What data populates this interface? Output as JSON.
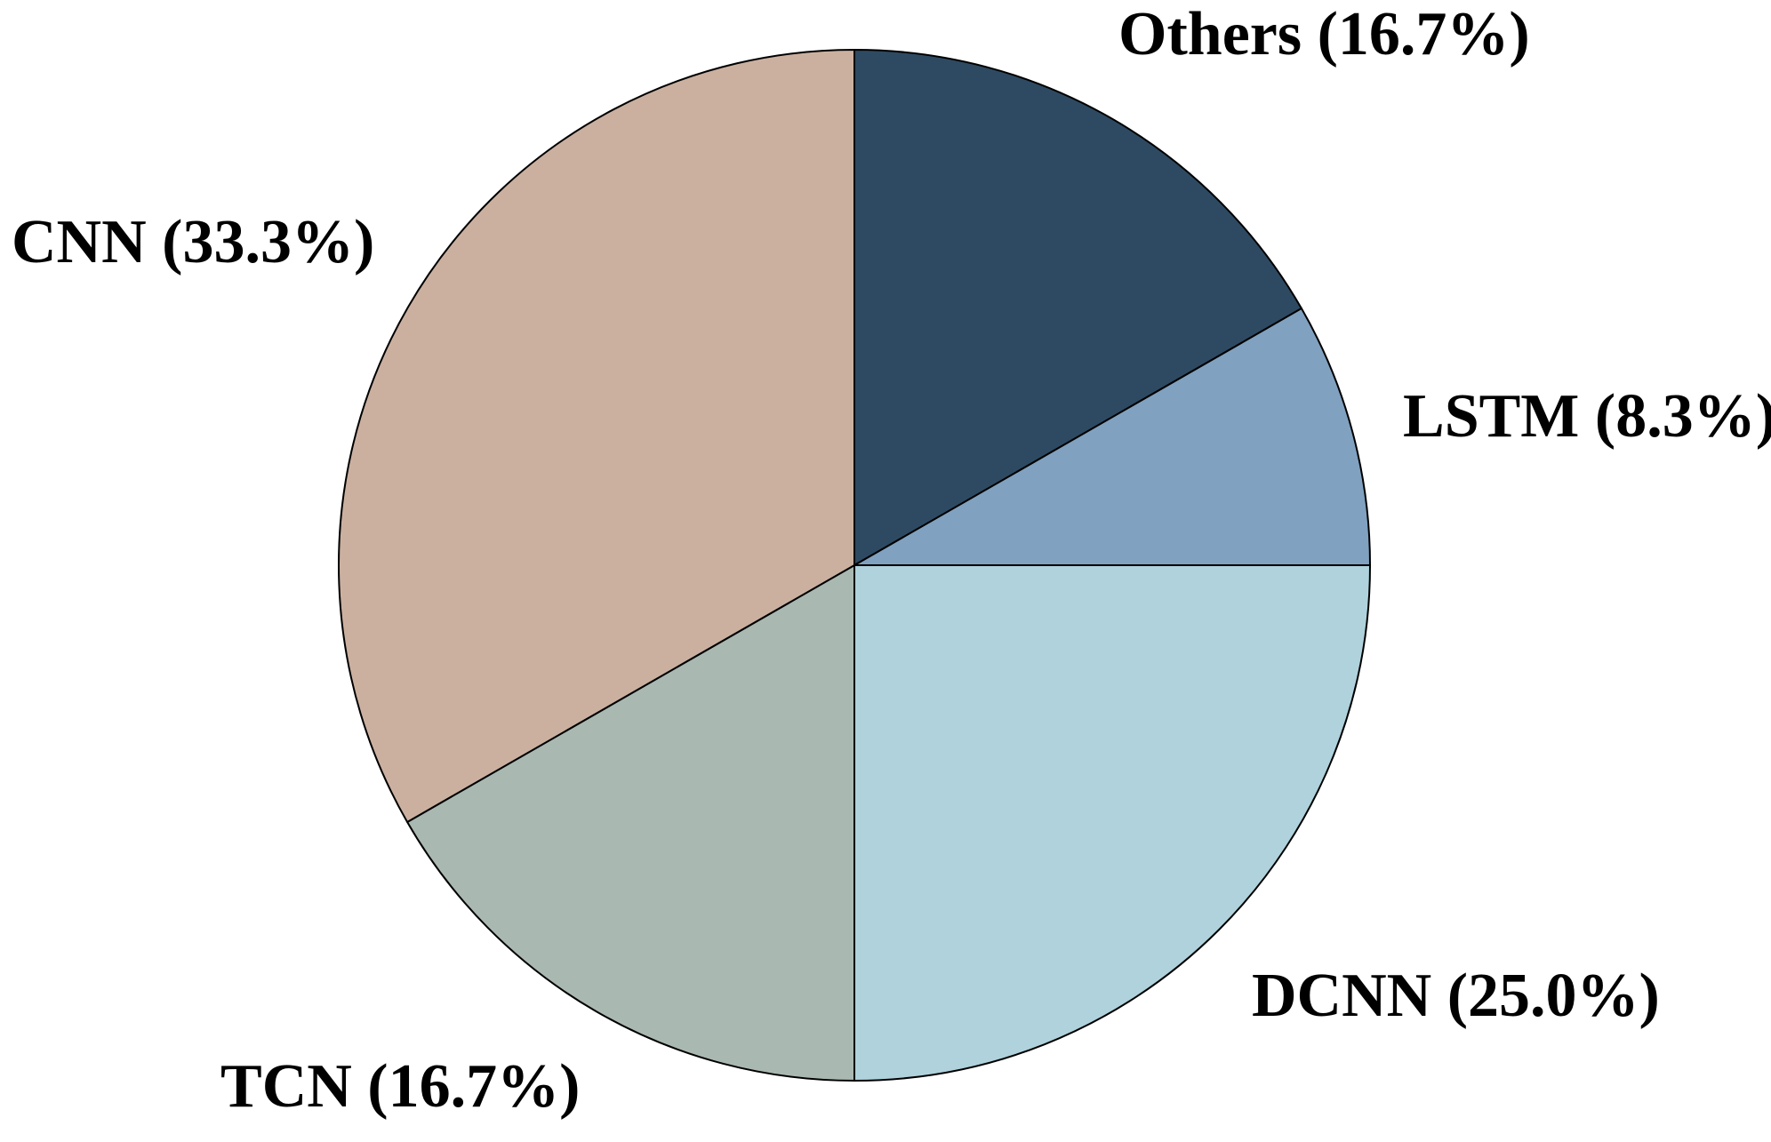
{
  "chart_data": {
    "type": "pie",
    "title": "",
    "segments": [
      {
        "label": "Others",
        "value_pct": 16.7,
        "label_text": "Others (16.7%)",
        "color": "#2E4A62"
      },
      {
        "label": "LSTM",
        "value_pct": 8.3,
        "label_text": "LSTM (8.3%)",
        "color": "#80A1BF"
      },
      {
        "label": "DCNN",
        "value_pct": 25.0,
        "label_text": "DCNN (25.0%)",
        "color": "#AFD2DC"
      },
      {
        "label": "TCN",
        "value_pct": 16.7,
        "label_text": "TCN (16.7%)",
        "color": "#A9B8B1"
      },
      {
        "label": "CNN",
        "value_pct": 33.3,
        "label_text": "CNN (33.3%)",
        "color": "#CBB0A0"
      }
    ],
    "layout": {
      "start_angle": "top",
      "direction": "clockwise",
      "labels_outside": true,
      "legend": "none",
      "slice_border_color": "#000000",
      "background_color": "#FFFFFF",
      "label_color": "#000000"
    }
  }
}
